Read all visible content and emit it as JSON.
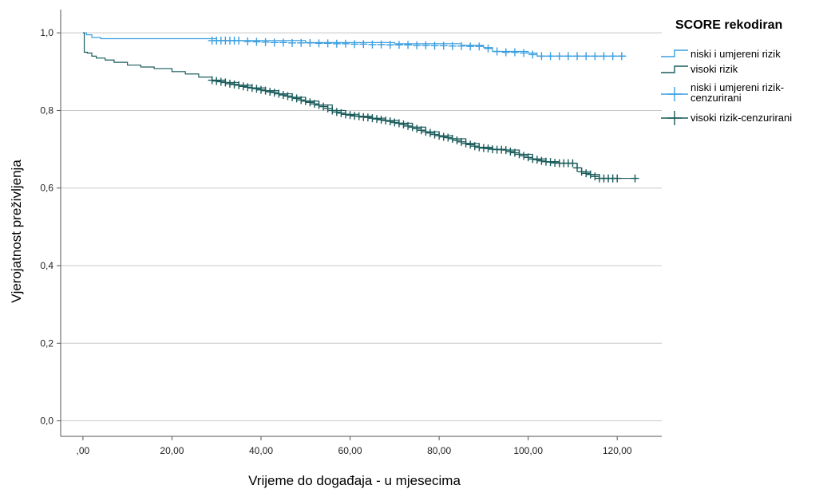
{
  "chart_data": {
    "type": "line",
    "xlabel": "Vrijeme do događaja - u mjesecima",
    "ylabel": "Vjerojatnost preživljenja",
    "xlim": [
      -5,
      130
    ],
    "ylim": [
      -0.04,
      1.06
    ],
    "x_ticks": [
      0,
      20,
      40,
      60,
      80,
      100,
      120
    ],
    "x_tick_labels": [
      ",00",
      "20,00",
      "40,00",
      "60,00",
      "80,00",
      "100,00",
      "120,00"
    ],
    "y_ticks": [
      0,
      0.2,
      0.4,
      0.6,
      0.8,
      1.0
    ],
    "y_tick_labels": [
      "0,0",
      "0,2",
      "0,4",
      "0,6",
      "0,8",
      "1,0"
    ],
    "grid": "horizontal",
    "legend": {
      "title": "SCORE rekodiran",
      "placement": "right",
      "entries": [
        {
          "label": "niski i umjereni rizik",
          "color": "#3a9fe0",
          "marker": "step"
        },
        {
          "label": "visoki rizik",
          "color": "#1a5b5b",
          "marker": "step"
        },
        {
          "label": "niski i umjereni rizik-cenzurirani",
          "label_lines": [
            "niski i umjereni rizik-",
            "cenzurirani"
          ],
          "color": "#3a9fe0",
          "marker": "plus"
        },
        {
          "label": "visoki rizik-cenzurirani",
          "color": "#1a5b5b",
          "marker": "plus"
        }
      ]
    },
    "series": [
      {
        "name": "niski i umjereni rizik",
        "color": "#3a9fe0",
        "steps": [
          [
            0,
            1.0
          ],
          [
            0.8,
            0.995
          ],
          [
            2,
            0.988
          ],
          [
            4,
            0.985
          ],
          [
            30,
            0.98
          ],
          [
            50,
            0.975
          ],
          [
            70,
            0.972
          ],
          [
            85,
            0.968
          ],
          [
            90,
            0.962
          ],
          [
            92,
            0.952
          ],
          [
            100,
            0.948
          ],
          [
            102,
            0.94
          ],
          [
            122,
            0.94
          ]
        ],
        "censored": [
          [
            29,
            0.98
          ],
          [
            30,
            0.98
          ],
          [
            31,
            0.98
          ],
          [
            32,
            0.98
          ],
          [
            33,
            0.98
          ],
          [
            34,
            0.98
          ],
          [
            35,
            0.98
          ],
          [
            37,
            0.978
          ],
          [
            39,
            0.977
          ],
          [
            41,
            0.976
          ],
          [
            43,
            0.975
          ],
          [
            45,
            0.975
          ],
          [
            47,
            0.974
          ],
          [
            49,
            0.974
          ],
          [
            51,
            0.974
          ],
          [
            53,
            0.973
          ],
          [
            55,
            0.973
          ],
          [
            57,
            0.972
          ],
          [
            59,
            0.972
          ],
          [
            61,
            0.971
          ],
          [
            63,
            0.971
          ],
          [
            65,
            0.97
          ],
          [
            67,
            0.97
          ],
          [
            69,
            0.969
          ],
          [
            71,
            0.969
          ],
          [
            73,
            0.969
          ],
          [
            75,
            0.968
          ],
          [
            77,
            0.968
          ],
          [
            79,
            0.967
          ],
          [
            81,
            0.967
          ],
          [
            83,
            0.966
          ],
          [
            85,
            0.966
          ],
          [
            87,
            0.965
          ],
          [
            89,
            0.965
          ],
          [
            91,
            0.96
          ],
          [
            93,
            0.952
          ],
          [
            95,
            0.95
          ],
          [
            97,
            0.95
          ],
          [
            99,
            0.948
          ],
          [
            101,
            0.944
          ],
          [
            103,
            0.94
          ],
          [
            105,
            0.94
          ],
          [
            107,
            0.94
          ],
          [
            109,
            0.94
          ],
          [
            111,
            0.94
          ],
          [
            113,
            0.94
          ],
          [
            115,
            0.94
          ],
          [
            117,
            0.94
          ],
          [
            119,
            0.94
          ],
          [
            121,
            0.94
          ]
        ]
      },
      {
        "name": "visoki rizik",
        "color": "#1a5b5b",
        "steps": [
          [
            0,
            1.0
          ],
          [
            0.3,
            0.95
          ],
          [
            1,
            0.948
          ],
          [
            2,
            0.94
          ],
          [
            3,
            0.935
          ],
          [
            5,
            0.93
          ],
          [
            7,
            0.924
          ],
          [
            10,
            0.917
          ],
          [
            13,
            0.912
          ],
          [
            16,
            0.908
          ],
          [
            20,
            0.9
          ],
          [
            23,
            0.894
          ],
          [
            26,
            0.886
          ],
          [
            29,
            0.878
          ],
          [
            32,
            0.872
          ],
          [
            35,
            0.865
          ],
          [
            38,
            0.858
          ],
          [
            41,
            0.851
          ],
          [
            44,
            0.843
          ],
          [
            47,
            0.834
          ],
          [
            50,
            0.824
          ],
          [
            53,
            0.814
          ],
          [
            56,
            0.8
          ],
          [
            59,
            0.79
          ],
          [
            62,
            0.785
          ],
          [
            65,
            0.78
          ],
          [
            68,
            0.774
          ],
          [
            71,
            0.767
          ],
          [
            74,
            0.757
          ],
          [
            77,
            0.745
          ],
          [
            80,
            0.735
          ],
          [
            83,
            0.727
          ],
          [
            86,
            0.715
          ],
          [
            89,
            0.705
          ],
          [
            92,
            0.7
          ],
          [
            95,
            0.698
          ],
          [
            98,
            0.687
          ],
          [
            101,
            0.675
          ],
          [
            104,
            0.668
          ],
          [
            107,
            0.664
          ],
          [
            110,
            0.664
          ],
          [
            111,
            0.652
          ],
          [
            112,
            0.642
          ],
          [
            114,
            0.635
          ],
          [
            116,
            0.625
          ],
          [
            119,
            0.625
          ],
          [
            124,
            0.625
          ]
        ],
        "censored": [
          [
            29,
            0.878
          ],
          [
            30,
            0.876
          ],
          [
            31,
            0.874
          ],
          [
            32,
            0.872
          ],
          [
            33,
            0.869
          ],
          [
            34,
            0.867
          ],
          [
            35,
            0.865
          ],
          [
            36,
            0.862
          ],
          [
            37,
            0.86
          ],
          [
            38,
            0.858
          ],
          [
            39,
            0.856
          ],
          [
            40,
            0.853
          ],
          [
            41,
            0.851
          ],
          [
            42,
            0.848
          ],
          [
            43,
            0.846
          ],
          [
            44,
            0.843
          ],
          [
            45,
            0.84
          ],
          [
            46,
            0.837
          ],
          [
            47,
            0.834
          ],
          [
            48,
            0.831
          ],
          [
            49,
            0.827
          ],
          [
            50,
            0.824
          ],
          [
            51,
            0.821
          ],
          [
            52,
            0.817
          ],
          [
            53,
            0.814
          ],
          [
            54,
            0.81
          ],
          [
            55,
            0.805
          ],
          [
            56,
            0.8
          ],
          [
            57,
            0.796
          ],
          [
            58,
            0.793
          ],
          [
            59,
            0.79
          ],
          [
            60,
            0.788
          ],
          [
            61,
            0.786
          ],
          [
            62,
            0.785
          ],
          [
            63,
            0.783
          ],
          [
            64,
            0.782
          ],
          [
            65,
            0.78
          ],
          [
            66,
            0.778
          ],
          [
            67,
            0.776
          ],
          [
            68,
            0.774
          ],
          [
            69,
            0.772
          ],
          [
            70,
            0.769
          ],
          [
            71,
            0.767
          ],
          [
            72,
            0.764
          ],
          [
            73,
            0.76
          ],
          [
            74,
            0.757
          ],
          [
            75,
            0.753
          ],
          [
            76,
            0.749
          ],
          [
            77,
            0.745
          ],
          [
            78,
            0.742
          ],
          [
            79,
            0.738
          ],
          [
            80,
            0.735
          ],
          [
            81,
            0.732
          ],
          [
            82,
            0.73
          ],
          [
            83,
            0.727
          ],
          [
            84,
            0.723
          ],
          [
            85,
            0.719
          ],
          [
            86,
            0.715
          ],
          [
            87,
            0.712
          ],
          [
            88,
            0.708
          ],
          [
            89,
            0.705
          ],
          [
            90,
            0.703
          ],
          [
            91,
            0.702
          ],
          [
            92,
            0.7
          ],
          [
            93,
            0.699
          ],
          [
            94,
            0.699
          ],
          [
            95,
            0.698
          ],
          [
            96,
            0.694
          ],
          [
            97,
            0.691
          ],
          [
            98,
            0.687
          ],
          [
            99,
            0.683
          ],
          [
            100,
            0.679
          ],
          [
            101,
            0.675
          ],
          [
            102,
            0.673
          ],
          [
            103,
            0.67
          ],
          [
            104,
            0.668
          ],
          [
            105,
            0.667
          ],
          [
            106,
            0.665
          ],
          [
            107,
            0.664
          ],
          [
            108,
            0.664
          ],
          [
            109,
            0.664
          ],
          [
            110,
            0.664
          ],
          [
            111,
            0.652
          ],
          [
            112,
            0.642
          ],
          [
            113,
            0.638
          ],
          [
            114,
            0.635
          ],
          [
            115,
            0.63
          ],
          [
            116,
            0.625
          ],
          [
            117,
            0.625
          ],
          [
            118,
            0.625
          ],
          [
            119,
            0.625
          ],
          [
            120,
            0.625
          ],
          [
            124,
            0.625
          ]
        ]
      }
    ]
  }
}
